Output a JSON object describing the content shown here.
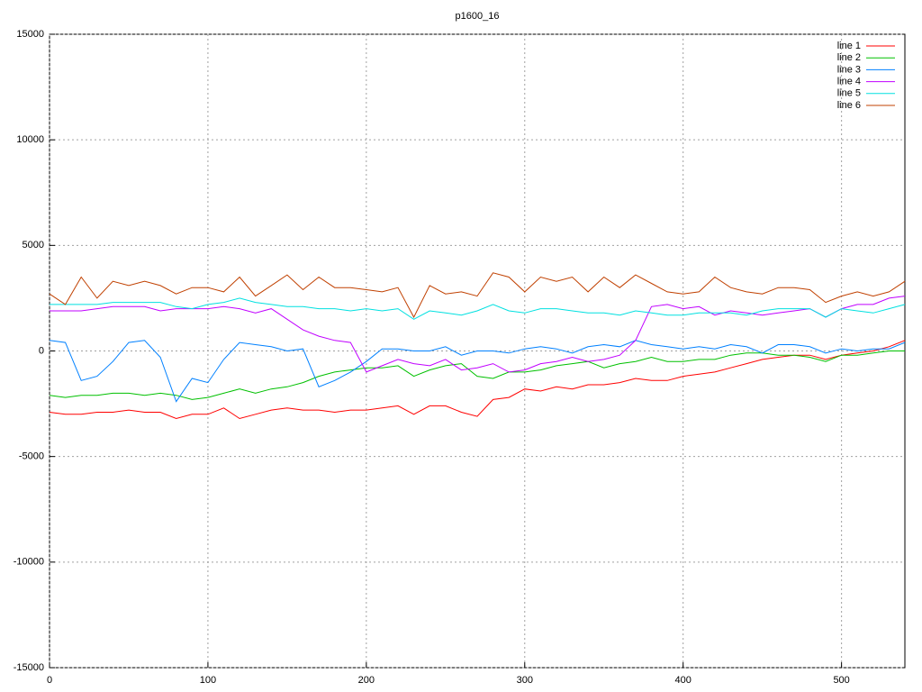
{
  "chart_data": {
    "type": "line",
    "title": "p1600_16",
    "x": [
      0,
      10,
      20,
      30,
      40,
      50,
      60,
      70,
      80,
      90,
      100,
      110,
      120,
      130,
      140,
      150,
      160,
      170,
      180,
      190,
      200,
      210,
      220,
      230,
      240,
      250,
      260,
      270,
      280,
      290,
      300,
      310,
      320,
      330,
      340,
      350,
      360,
      370,
      380,
      390,
      400,
      410,
      420,
      430,
      440,
      450,
      460,
      470,
      480,
      490,
      500,
      510,
      520,
      530,
      540
    ],
    "xlim": [
      0,
      540
    ],
    "xticks": [
      0,
      100,
      200,
      300,
      400,
      500
    ],
    "ylim": [
      -15000,
      15000
    ],
    "yticks": [
      -15000,
      -10000,
      -5000,
      0,
      5000,
      10000,
      15000
    ],
    "grid": true,
    "legend": "top-right",
    "series": [
      {
        "name": "line 1",
        "color": "#ff0000",
        "values": [
          -2900,
          -3000,
          -3000,
          -2900,
          -2900,
          -2800,
          -2900,
          -2900,
          -3200,
          -3000,
          -3000,
          -2700,
          -3200,
          -3000,
          -2800,
          -2700,
          -2800,
          -2800,
          -2900,
          -2800,
          -2800,
          -2700,
          -2600,
          -3000,
          -2600,
          -2600,
          -2900,
          -3100,
          -2300,
          -2200,
          -1800,
          -1900,
          -1700,
          -1800,
          -1600,
          -1600,
          -1500,
          -1300,
          -1400,
          -1400,
          -1200,
          -1100,
          -1000,
          -800,
          -600,
          -400,
          -300,
          -200,
          -200,
          -400,
          -200,
          -100,
          0,
          200,
          500
        ]
      },
      {
        "name": "line 2",
        "color": "#00c000",
        "values": [
          -2100,
          -2200,
          -2100,
          -2100,
          -2000,
          -2000,
          -2100,
          -2000,
          -2100,
          -2300,
          -2200,
          -2000,
          -1800,
          -2000,
          -1800,
          -1700,
          -1500,
          -1200,
          -1000,
          -900,
          -800,
          -800,
          -700,
          -1200,
          -900,
          -700,
          -600,
          -1200,
          -1300,
          -1000,
          -1000,
          -900,
          -700,
          -600,
          -500,
          -800,
          -600,
          -500,
          -300,
          -500,
          -500,
          -400,
          -400,
          -200,
          -100,
          -100,
          -200,
          -200,
          -300,
          -500,
          -200,
          -200,
          -100,
          0,
          0
        ]
      },
      {
        "name": "line 3",
        "color": "#0080ff",
        "values": [
          500,
          400,
          -1400,
          -1200,
          -500,
          400,
          500,
          -300,
          -2400,
          -1300,
          -1500,
          -400,
          400,
          300,
          200,
          0,
          100,
          -1700,
          -1400,
          -1000,
          -500,
          100,
          100,
          0,
          0,
          200,
          -200,
          0,
          0,
          -100,
          100,
          200,
          100,
          -100,
          200,
          300,
          200,
          500,
          300,
          200,
          100,
          200,
          100,
          300,
          200,
          -100,
          300,
          300,
          200,
          -100,
          100,
          0,
          100,
          100,
          400
        ]
      },
      {
        "name": "line 4",
        "color": "#c000ff",
        "values": [
          1900,
          1900,
          1900,
          2000,
          2100,
          2100,
          2100,
          1900,
          2000,
          2000,
          2000,
          2100,
          2000,
          1800,
          2000,
          1500,
          1000,
          700,
          500,
          400,
          -1000,
          -700,
          -400,
          -600,
          -700,
          -400,
          -900,
          -800,
          -600,
          -1000,
          -900,
          -600,
          -500,
          -300,
          -500,
          -400,
          -200,
          500,
          2100,
          2200,
          2000,
          2100,
          1700,
          1900,
          1800,
          1700,
          1800,
          1900,
          2000,
          1600,
          2000,
          2200,
          2200,
          2500,
          2600
        ]
      },
      {
        "name": "line 5",
        "color": "#00e0e0",
        "values": [
          2200,
          2200,
          2200,
          2200,
          2300,
          2300,
          2300,
          2300,
          2100,
          2000,
          2200,
          2300,
          2500,
          2300,
          2200,
          2100,
          2100,
          2000,
          2000,
          1900,
          2000,
          1900,
          2000,
          1500,
          1900,
          1800,
          1700,
          1900,
          2200,
          1900,
          1800,
          2000,
          2000,
          1900,
          1800,
          1800,
          1700,
          1900,
          1800,
          1700,
          1700,
          1800,
          1800,
          1800,
          1700,
          1900,
          2000,
          2000,
          2000,
          1600,
          2000,
          1900,
          1800,
          2000,
          2200
        ]
      },
      {
        "name": "line 6",
        "color": "#c04000",
        "values": [
          2700,
          2200,
          3500,
          2500,
          3300,
          3100,
          3300,
          3100,
          2700,
          3000,
          3000,
          2800,
          3500,
          2600,
          3100,
          3600,
          2900,
          3500,
          3000,
          3000,
          2900,
          2800,
          3000,
          1600,
          3100,
          2700,
          2800,
          2600,
          3700,
          3500,
          2800,
          3500,
          3300,
          3500,
          2800,
          3500,
          3000,
          3600,
          3200,
          2800,
          2700,
          2800,
          3500,
          3000,
          2800,
          2700,
          3000,
          3000,
          2900,
          2300,
          2600,
          2800,
          2600,
          2800,
          3300
        ]
      }
    ]
  }
}
